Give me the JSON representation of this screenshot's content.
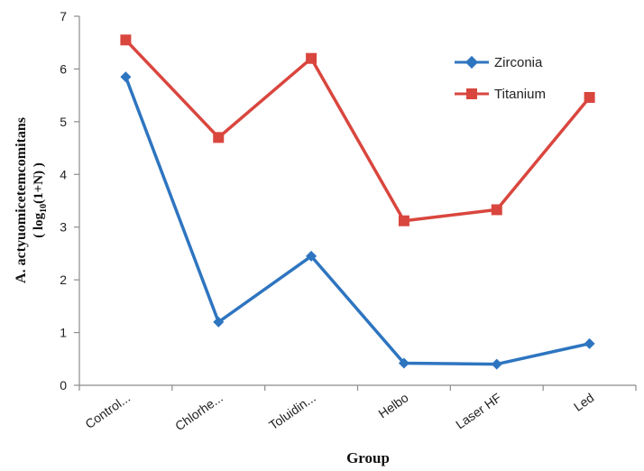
{
  "chart_data": {
    "type": "line",
    "categories": [
      "Control...",
      "Chlorhe...",
      "Toluidin...",
      "Helbo",
      "Laser HF",
      "Led"
    ],
    "xlabel": "Group",
    "ylabel_line1": "A. actyuomicetemcomitans",
    "ylabel_line2_prefix": "( log",
    "ylabel_line2_sub": "10",
    "ylabel_line2_suffix": "(1+N) )",
    "ylim": [
      0,
      7
    ],
    "yticks": [
      "0",
      "1",
      "2",
      "3",
      "4",
      "5",
      "6",
      "7"
    ],
    "grid": false,
    "legend_position": "top-right",
    "series": [
      {
        "name": "Zirconia",
        "color": "#2e75c0",
        "marker": "diamond",
        "values": [
          5.85,
          1.2,
          2.45,
          0.42,
          0.4,
          0.79
        ]
      },
      {
        "name": "Titanium",
        "color": "#d9463e",
        "marker": "square",
        "values": [
          6.55,
          4.7,
          6.2,
          3.12,
          3.33,
          5.46
        ]
      }
    ]
  }
}
